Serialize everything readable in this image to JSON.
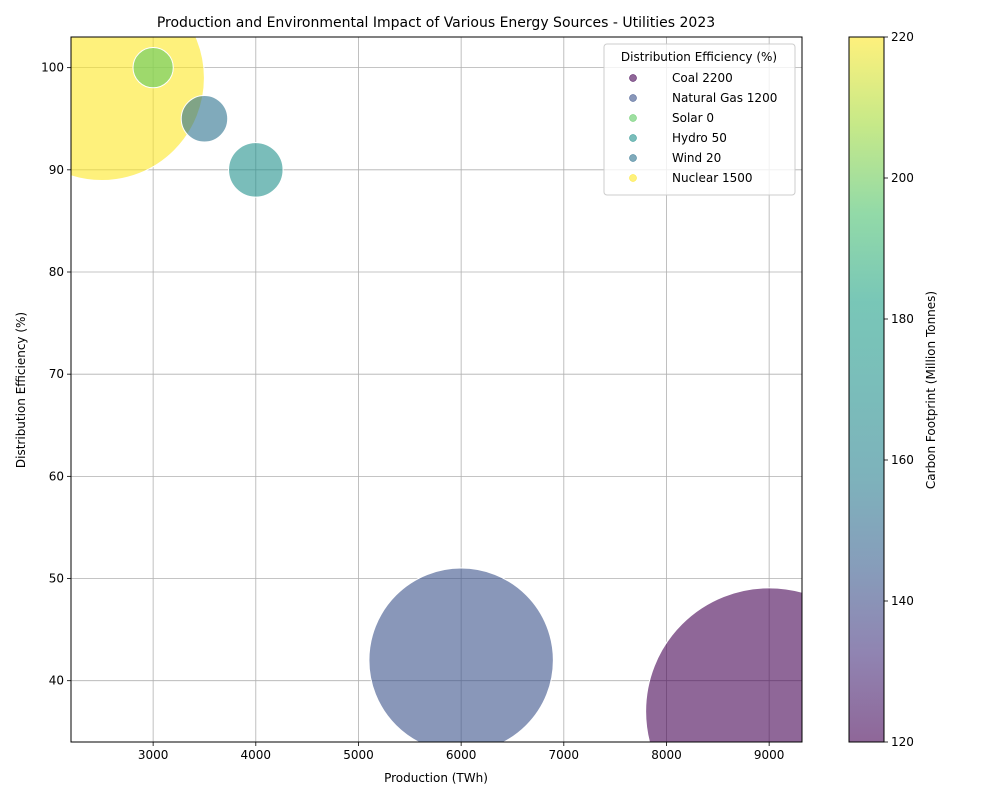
{
  "chart_data": {
    "type": "scatter",
    "title": "Production and Environmental Impact of Various Energy Sources - Utilities 2023",
    "xlabel": "Production (TWh)",
    "ylabel": "Distribution Efficiency (%)",
    "xlim": [
      2200,
      9320
    ],
    "ylim": [
      34,
      103
    ],
    "xticks": [
      3000,
      4000,
      5000,
      6000,
      7000,
      8000,
      9000
    ],
    "yticks": [
      40,
      50,
      60,
      70,
      80,
      90,
      100
    ],
    "grid": true,
    "legend": {
      "title": "Distribution Efficiency (%)",
      "placement": "top-right",
      "entries": [
        "Coal 2200",
        "Natural Gas 1200",
        "Solar 0",
        "Hydro 50",
        "Wind 20",
        "Nuclear 1500"
      ]
    },
    "colorbar": {
      "label": "Carbon Footprint (Million Tonnes)",
      "range": [
        120,
        220
      ],
      "ticks": [
        120,
        140,
        160,
        180,
        200,
        220
      ],
      "colormap": "viridis"
    },
    "series": [
      {
        "name": "Coal",
        "x": 9000,
        "y": 37,
        "color_value": 120,
        "size_value": 2200,
        "color": "#440154"
      },
      {
        "name": "Natural Gas",
        "x": 6000,
        "y": 42,
        "color_value": 150,
        "size_value": 1200,
        "color": "#3b528b"
      },
      {
        "name": "Solar",
        "x": 3000,
        "y": 100,
        "color_value": 200,
        "size_value": 0,
        "color": "#5ec962"
      },
      {
        "name": "Hydro",
        "x": 4000,
        "y": 90,
        "color_value": 180,
        "size_value": 50,
        "color": "#21918c"
      },
      {
        "name": "Wind",
        "x": 3500,
        "y": 95,
        "color_value": 160,
        "size_value": 20,
        "color": "#2c728e"
      },
      {
        "name": "Nuclear",
        "x": 2500,
        "y": 99,
        "color_value": 220,
        "size_value": 1500,
        "color": "#fde725"
      }
    ]
  }
}
